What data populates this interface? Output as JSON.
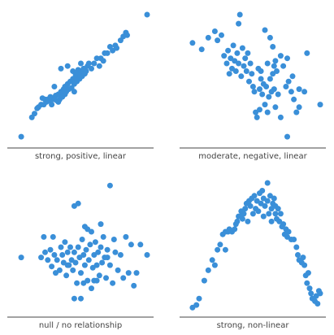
{
  "colors": {
    "point": "#3a8fd8",
    "axis": "#444444",
    "label": "#444444",
    "background": "#ffffff"
  },
  "chart_data": [
    {
      "type": "scatter",
      "xlabel": "strong, positive, linear",
      "ylabel": "",
      "xlim": [
        0,
        100
      ],
      "ylim": [
        0,
        100
      ],
      "grid": false,
      "points": [
        [
          5,
          5
        ],
        [
          13,
          20
        ],
        [
          15,
          23
        ],
        [
          17,
          27
        ],
        [
          18,
          28
        ],
        [
          20,
          30
        ],
        [
          21,
          35
        ],
        [
          22,
          30
        ],
        [
          23,
          34
        ],
        [
          24,
          32
        ],
        [
          25,
          34
        ],
        [
          26,
          33
        ],
        [
          27,
          36
        ],
        [
          28,
          34
        ],
        [
          28,
          30
        ],
        [
          29,
          35
        ],
        [
          30,
          34
        ],
        [
          31,
          37
        ],
        [
          32,
          33
        ],
        [
          33,
          38
        ],
        [
          34,
          34
        ],
        [
          35,
          40
        ],
        [
          36,
          36
        ],
        [
          37,
          42
        ],
        [
          38,
          38
        ],
        [
          38,
          44
        ],
        [
          39,
          40
        ],
        [
          40,
          46
        ],
        [
          41,
          42
        ],
        [
          42,
          48
        ],
        [
          43,
          43
        ],
        [
          44,
          50
        ],
        [
          45,
          46
        ],
        [
          45,
          40
        ],
        [
          46,
          52
        ],
        [
          47,
          48
        ],
        [
          48,
          54
        ],
        [
          49,
          50
        ],
        [
          50,
          56
        ],
        [
          51,
          52
        ],
        [
          52,
          58
        ],
        [
          53,
          54
        ],
        [
          54,
          56
        ],
        [
          55,
          60
        ],
        [
          56,
          62
        ],
        [
          58,
          58
        ],
        [
          60,
          62
        ],
        [
          62,
          66
        ],
        [
          64,
          60
        ],
        [
          65,
          66
        ],
        [
          67,
          64
        ],
        [
          68,
          70
        ],
        [
          70,
          70
        ],
        [
          72,
          75
        ],
        [
          74,
          72
        ],
        [
          76,
          76
        ],
        [
          77,
          74
        ],
        [
          80,
          80
        ],
        [
          82,
          83
        ],
        [
          84,
          86
        ],
        [
          85,
          84
        ],
        [
          44,
          56
        ],
        [
          46,
          54
        ],
        [
          48,
          57
        ],
        [
          40,
          60
        ],
        [
          50,
          62
        ],
        [
          35,
          58
        ],
        [
          100,
          100
        ],
        [
          30,
          44
        ],
        [
          33,
          32
        ]
      ]
    },
    {
      "type": "scatter",
      "xlabel": "moderate, negative, linear",
      "ylabel": "",
      "xlim": [
        0,
        100
      ],
      "ylim": [
        0,
        100
      ],
      "grid": false,
      "points": [
        [
          3,
          78
        ],
        [
          10,
          73
        ],
        [
          15,
          82
        ],
        [
          20,
          87
        ],
        [
          22,
          80
        ],
        [
          25,
          84
        ],
        [
          27,
          68
        ],
        [
          29,
          62
        ],
        [
          30,
          72
        ],
        [
          31,
          54
        ],
        [
          32,
          66
        ],
        [
          33,
          58
        ],
        [
          34,
          76
        ],
        [
          35,
          64
        ],
        [
          36,
          56
        ],
        [
          37,
          70
        ],
        [
          38,
          62
        ],
        [
          38,
          93
        ],
        [
          39,
          100
        ],
        [
          40,
          52
        ],
        [
          41,
          74
        ],
        [
          42,
          60
        ],
        [
          43,
          66
        ],
        [
          44,
          56
        ],
        [
          45,
          70
        ],
        [
          46,
          48
        ],
        [
          47,
          62
        ],
        [
          48,
          54
        ],
        [
          49,
          44
        ],
        [
          50,
          40
        ],
        [
          51,
          24
        ],
        [
          52,
          20
        ],
        [
          53,
          58
        ],
        [
          54,
          42
        ],
        [
          55,
          50
        ],
        [
          56,
          38
        ],
        [
          57,
          46
        ],
        [
          58,
          30
        ],
        [
          59,
          44
        ],
        [
          60,
          62
        ],
        [
          61,
          36
        ],
        [
          62,
          50
        ],
        [
          63,
          40
        ],
        [
          64,
          54
        ],
        [
          65,
          42
        ],
        [
          66,
          64
        ],
        [
          67,
          56
        ],
        [
          68,
          38
        ],
        [
          70,
          68
        ],
        [
          72,
          60
        ],
        [
          74,
          44
        ],
        [
          75,
          66
        ],
        [
          76,
          48
        ],
        [
          78,
          40
        ],
        [
          79,
          52
        ],
        [
          80,
          34
        ],
        [
          82,
          24
        ],
        [
          84,
          42
        ],
        [
          88,
          40
        ],
        [
          58,
          88
        ],
        [
          62,
          82
        ],
        [
          64,
          75
        ],
        [
          65,
          60
        ],
        [
          55,
          56
        ],
        [
          60,
          24
        ],
        [
          70,
          20
        ],
        [
          75,
          5
        ],
        [
          84,
          28
        ],
        [
          90,
          70
        ],
        [
          100,
          30
        ],
        [
          66,
          28
        ],
        [
          54,
          26
        ]
      ]
    },
    {
      "type": "scatter",
      "xlabel": "null / no relationship",
      "ylabel": "",
      "xlim": [
        0,
        100
      ],
      "ylim": [
        0,
        100
      ],
      "grid": false,
      "points": [
        [
          5,
          42
        ],
        [
          20,
          42
        ],
        [
          22,
          58
        ],
        [
          23,
          46
        ],
        [
          25,
          40
        ],
        [
          27,
          48
        ],
        [
          28,
          35
        ],
        [
          29,
          58
        ],
        [
          30,
          44
        ],
        [
          31,
          30
        ],
        [
          32,
          40
        ],
        [
          34,
          32
        ],
        [
          35,
          50
        ],
        [
          36,
          44
        ],
        [
          37,
          38
        ],
        [
          38,
          54
        ],
        [
          39,
          28
        ],
        [
          40,
          46
        ],
        [
          41,
          36
        ],
        [
          42,
          50
        ],
        [
          43,
          40
        ],
        [
          44,
          32
        ],
        [
          45,
          46
        ],
        [
          45,
          10
        ],
        [
          46,
          38
        ],
        [
          47,
          22
        ],
        [
          48,
          50
        ],
        [
          49,
          42
        ],
        [
          50,
          30
        ],
        [
          51,
          56
        ],
        [
          52,
          44
        ],
        [
          53,
          36
        ],
        [
          54,
          48
        ],
        [
          55,
          24
        ],
        [
          56,
          40
        ],
        [
          57,
          52
        ],
        [
          58,
          18
        ],
        [
          59,
          34
        ],
        [
          60,
          44
        ],
        [
          61,
          54
        ],
        [
          62,
          36
        ],
        [
          63,
          46
        ],
        [
          64,
          28
        ],
        [
          65,
          50
        ],
        [
          66,
          38
        ],
        [
          67,
          58
        ],
        [
          68,
          42
        ],
        [
          69,
          26
        ],
        [
          70,
          48
        ],
        [
          72,
          36
        ],
        [
          74,
          22
        ],
        [
          75,
          56
        ],
        [
          76,
          46
        ],
        [
          78,
          32
        ],
        [
          80,
          44
        ],
        [
          82,
          26
        ],
        [
          84,
          58
        ],
        [
          86,
          30
        ],
        [
          88,
          52
        ],
        [
          90,
          20
        ],
        [
          92,
          30
        ],
        [
          95,
          52
        ],
        [
          100,
          44
        ],
        [
          45,
          82
        ],
        [
          48,
          84
        ],
        [
          53,
          66
        ],
        [
          55,
          64
        ],
        [
          65,
          68
        ],
        [
          70,
          42
        ],
        [
          52,
          22
        ],
        [
          60,
          24
        ],
        [
          62,
          24
        ],
        [
          50,
          10
        ],
        [
          72,
          98
        ],
        [
          40,
          36
        ],
        [
          58,
          62
        ]
      ]
    },
    {
      "type": "scatter",
      "xlabel": "strong, non-linear",
      "ylabel": "",
      "xlim": [
        0,
        100
      ],
      "ylim": [
        0,
        100
      ],
      "grid": false,
      "points": [
        [
          3,
          3
        ],
        [
          6,
          5
        ],
        [
          8,
          10
        ],
        [
          12,
          24
        ],
        [
          15,
          32
        ],
        [
          18,
          40
        ],
        [
          20,
          36
        ],
        [
          22,
          48
        ],
        [
          24,
          52
        ],
        [
          26,
          60
        ],
        [
          28,
          62
        ],
        [
          30,
          62
        ],
        [
          31,
          64
        ],
        [
          33,
          62
        ],
        [
          35,
          64
        ],
        [
          36,
          68
        ],
        [
          37,
          70
        ],
        [
          38,
          74
        ],
        [
          40,
          78
        ],
        [
          41,
          72
        ],
        [
          42,
          76
        ],
        [
          43,
          80
        ],
        [
          44,
          84
        ],
        [
          46,
          86
        ],
        [
          47,
          82
        ],
        [
          48,
          88
        ],
        [
          49,
          76
        ],
        [
          50,
          90
        ],
        [
          51,
          80
        ],
        [
          52,
          86
        ],
        [
          53,
          78
        ],
        [
          54,
          92
        ],
        [
          55,
          84
        ],
        [
          56,
          94
        ],
        [
          57,
          88
        ],
        [
          58,
          82
        ],
        [
          60,
          86
        ],
        [
          61,
          76
        ],
        [
          62,
          90
        ],
        [
          63,
          80
        ],
        [
          64,
          84
        ],
        [
          65,
          88
        ],
        [
          66,
          76
        ],
        [
          67,
          72
        ],
        [
          68,
          80
        ],
        [
          69,
          70
        ],
        [
          70,
          76
        ],
        [
          71,
          66
        ],
        [
          72,
          68
        ],
        [
          73,
          60
        ],
        [
          74,
          64
        ],
        [
          75,
          58
        ],
        [
          76,
          62
        ],
        [
          78,
          56
        ],
        [
          80,
          56
        ],
        [
          82,
          50
        ],
        [
          83,
          44
        ],
        [
          84,
          40
        ],
        [
          86,
          38
        ],
        [
          87,
          42
        ],
        [
          88,
          36
        ],
        [
          89,
          28
        ],
        [
          90,
          22
        ],
        [
          91,
          30
        ],
        [
          92,
          18
        ],
        [
          93,
          14
        ],
        [
          94,
          10
        ],
        [
          96,
          8
        ],
        [
          97,
          12
        ],
        [
          98,
          6
        ],
        [
          99,
          16
        ],
        [
          100,
          14
        ],
        [
          39,
          74
        ],
        [
          45,
          70
        ],
        [
          57,
          74
        ],
        [
          63,
          70
        ],
        [
          66,
          82
        ],
        [
          28,
          48
        ],
        [
          60,
          100
        ]
      ]
    }
  ]
}
